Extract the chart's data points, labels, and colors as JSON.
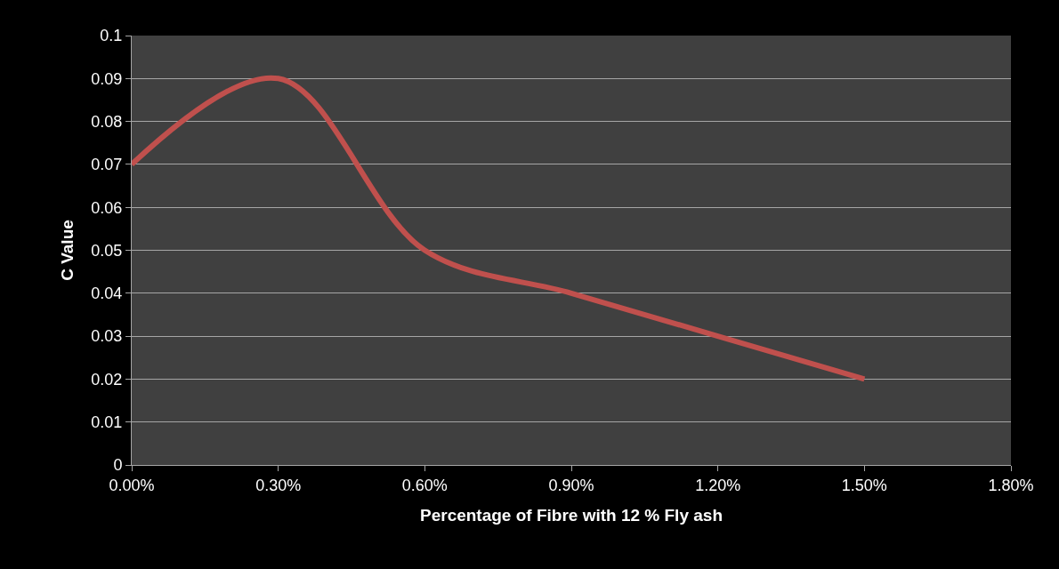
{
  "chart_data": {
    "type": "line",
    "xlabel": "Percentage of Fibre with 12 % Fly ash",
    "ylabel": "C Value",
    "x": [
      0,
      0.3,
      0.6,
      0.9,
      1.2,
      1.5
    ],
    "series": [
      {
        "color": "#c0504d",
        "values": [
          0.07,
          0.09,
          0.05,
          0.04,
          0.03,
          0.02
        ]
      }
    ],
    "xlim": [
      0,
      1.8
    ],
    "xticks": [
      {
        "value": 0,
        "label": "0.00%"
      },
      {
        "value": 0.3,
        "label": "0.30%"
      },
      {
        "value": 0.6,
        "label": "0.60%"
      },
      {
        "value": 0.9,
        "label": "0.90%"
      },
      {
        "value": 1.2,
        "label": "1.20%"
      },
      {
        "value": 1.5,
        "label": "1.50%"
      },
      {
        "value": 1.8,
        "label": "1.80%"
      }
    ],
    "ylim": [
      0,
      0.1
    ],
    "yticks": [
      0,
      0.01,
      0.02,
      0.03,
      0.04,
      0.05,
      0.06,
      0.07,
      0.08,
      0.09,
      0.1
    ],
    "grid": "y",
    "marker": "none",
    "line_style": "solid"
  }
}
